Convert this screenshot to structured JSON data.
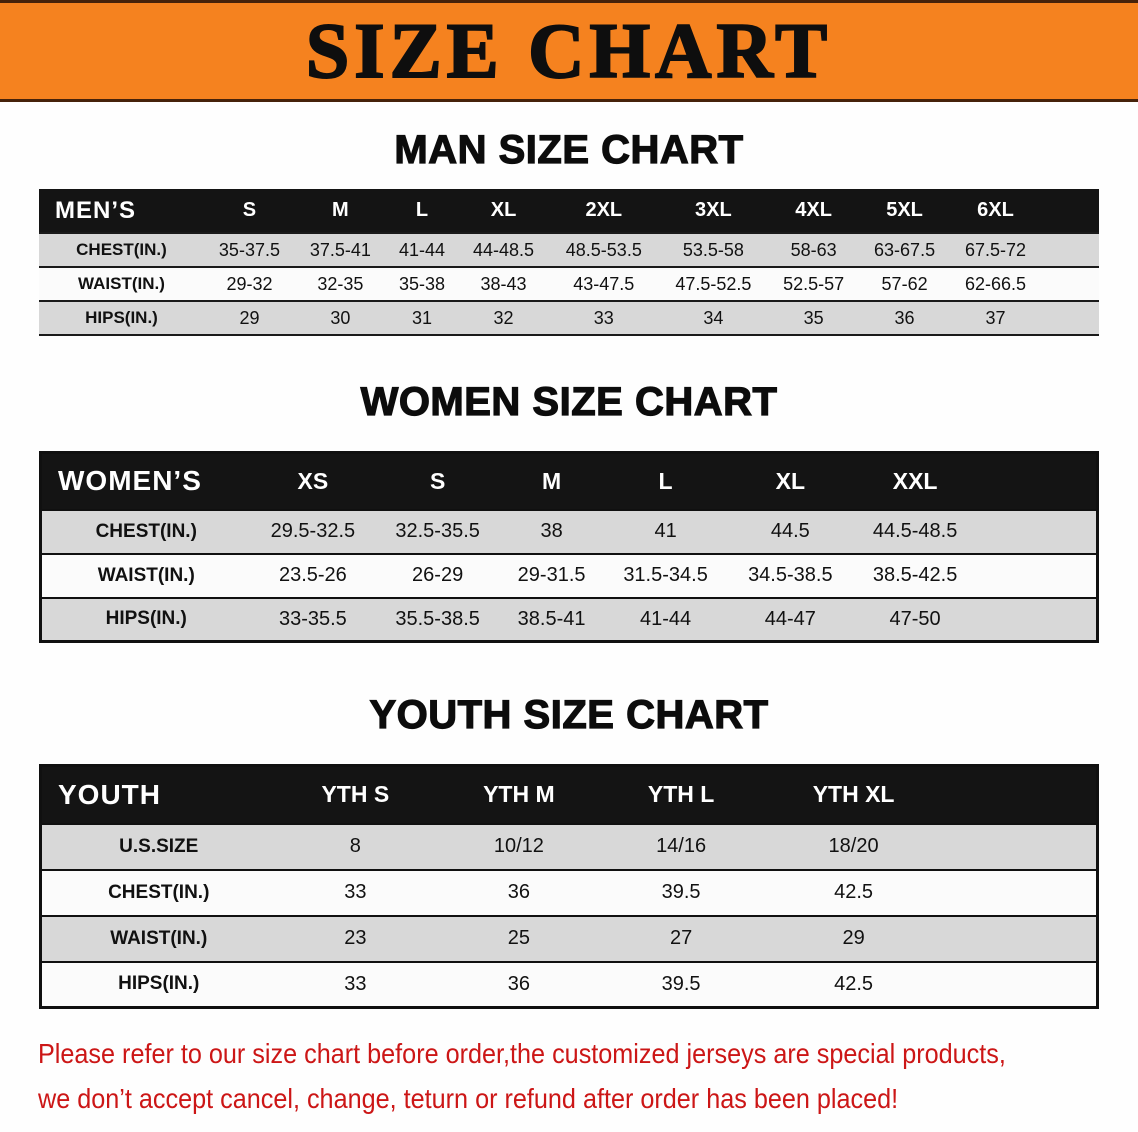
{
  "banner": {
    "title": "SIZE CHART",
    "bg_color": "#f5821f",
    "text_color": "#0e0e0e"
  },
  "chart_data": [
    {
      "type": "table",
      "id": "men",
      "title": "MAN SIZE CHART",
      "corner_label": "MEN’S",
      "columns": [
        "S",
        "M",
        "L",
        "XL",
        "2XL",
        "3XL",
        "4XL",
        "5XL",
        "6XL"
      ],
      "rows": [
        {
          "label": "CHEST(IN.)",
          "values": [
            "35-37.5",
            "37.5-41",
            "41-44",
            "44-48.5",
            "48.5-53.5",
            "53.5-58",
            "58-63",
            "63-67.5",
            "67.5-72"
          ]
        },
        {
          "label": "WAIST(IN.)",
          "values": [
            "29-32",
            "32-35",
            "35-38",
            "38-43",
            "43-47.5",
            "47.5-52.5",
            "52.5-57",
            "57-62",
            "62-66.5"
          ]
        },
        {
          "label": "HIPS(IN.)",
          "values": [
            "29",
            "30",
            "31",
            "32",
            "33",
            "34",
            "35",
            "36",
            "37"
          ]
        }
      ]
    },
    {
      "type": "table",
      "id": "women",
      "title": "WOMEN SIZE CHART",
      "corner_label": "WOMEN’S",
      "columns": [
        "XS",
        "S",
        "M",
        "L",
        "XL",
        "XXL"
      ],
      "rows": [
        {
          "label": "CHEST(IN.)",
          "values": [
            "29.5-32.5",
            "32.5-35.5",
            "38",
            "41",
            "44.5",
            "44.5-48.5"
          ]
        },
        {
          "label": "WAIST(IN.)",
          "values": [
            "23.5-26",
            "26-29",
            "29-31.5",
            "31.5-34.5",
            "34.5-38.5",
            "38.5-42.5"
          ]
        },
        {
          "label": "HIPS(IN.)",
          "values": [
            "33-35.5",
            "35.5-38.5",
            "38.5-41",
            "41-44",
            "44-47",
            "47-50"
          ]
        }
      ]
    },
    {
      "type": "table",
      "id": "youth",
      "title": "YOUTH SIZE CHART",
      "corner_label": "YOUTH",
      "columns": [
        "YTH S",
        "YTH M",
        "YTH L",
        "YTH XL"
      ],
      "rows": [
        {
          "label": "U.S.SIZE",
          "values": [
            "8",
            "10/12",
            "14/16",
            "18/20"
          ]
        },
        {
          "label": "CHEST(IN.)",
          "values": [
            "33",
            "36",
            "39.5",
            "42.5"
          ]
        },
        {
          "label": "WAIST(IN.)",
          "values": [
            "23",
            "25",
            "27",
            "29"
          ]
        },
        {
          "label": "HIPS(IN.)",
          "values": [
            "33",
            "36",
            "39.5",
            "42.5"
          ]
        }
      ]
    }
  ],
  "footer": {
    "line1": "Please refer to our size chart before order,the customized jerseys are special products,",
    "line2": "we don’t accept cancel, change, teturn or refund after order has been placed!",
    "color": "#cc1616"
  }
}
